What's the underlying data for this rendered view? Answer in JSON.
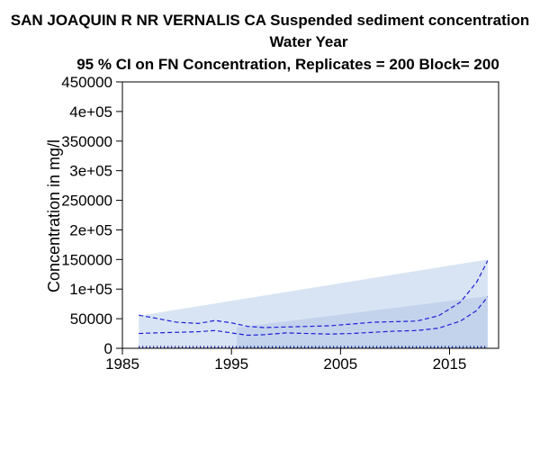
{
  "chart_data": {
    "type": "line",
    "title": {
      "line1": "SAN JOAQUIN R NR VERNALIS CA   Suspended sediment concentration",
      "line2": "Water Year",
      "line3": "95 % CI on FN Concentration, Replicates = 200 Block= 200"
    },
    "xlabel": "",
    "ylabel": "Concentration in mg/l",
    "xlim": [
      1985,
      2019.5
    ],
    "ylim": [
      0,
      450000
    ],
    "x_ticks": [
      1985,
      1995,
      2005,
      2015
    ],
    "x_tick_labels": [
      "1985",
      "1995",
      "2005",
      "2015"
    ],
    "y_ticks": [
      0,
      50000,
      100000,
      150000,
      200000,
      250000,
      300000,
      350000,
      400000,
      450000
    ],
    "y_tick_labels": [
      "0",
      "50000",
      "1e+05",
      "150000",
      "2e+05",
      "250000",
      "3e+05",
      "350000",
      "4e+05",
      "450000"
    ],
    "grid": false,
    "legend": "none",
    "bands": [
      {
        "points": [
          [
            1986.5,
            55000
          ],
          [
            2018.5,
            150000
          ],
          [
            2018.5,
            0
          ],
          [
            1986.5,
            0
          ]
        ],
        "color": "#d8e4f4"
      },
      {
        "points": [
          [
            1995.5,
            35000
          ],
          [
            2018.5,
            88000
          ],
          [
            2018.5,
            0
          ],
          [
            1995.5,
            0
          ]
        ],
        "color": "#c3d3ec"
      }
    ],
    "series": [
      {
        "style": "dashed",
        "color": "#1f1fd6",
        "x": [
          1986.5,
          1988,
          1990,
          1992,
          1993.5,
          1995,
          1996.5,
          1998,
          2000,
          2002,
          2004,
          2006,
          2008,
          2010,
          2012,
          2014,
          2016,
          2017.5,
          2018.5
        ],
        "values": [
          56000,
          51000,
          44000,
          42000,
          47000,
          43000,
          37000,
          35000,
          36000,
          37000,
          38000,
          41000,
          44000,
          45000,
          46000,
          55000,
          78000,
          112000,
          148000
        ]
      },
      {
        "style": "dashed",
        "color": "#1f1fd6",
        "x": [
          1986.5,
          1988,
          1990,
          1992,
          1993.5,
          1995,
          1996.5,
          1998,
          2000,
          2002,
          2004,
          2006,
          2008,
          2010,
          2012,
          2014,
          2016,
          2017.5,
          2018.5
        ],
        "values": [
          25000,
          26000,
          27000,
          28000,
          30000,
          26000,
          22000,
          23000,
          26000,
          25000,
          24000,
          25000,
          27000,
          29000,
          30000,
          34000,
          46000,
          64000,
          87000
        ]
      },
      {
        "style": "dotted",
        "color": "#00008b",
        "x": [
          1986.5,
          2018.5
        ],
        "values": [
          2000,
          2000
        ]
      }
    ]
  }
}
